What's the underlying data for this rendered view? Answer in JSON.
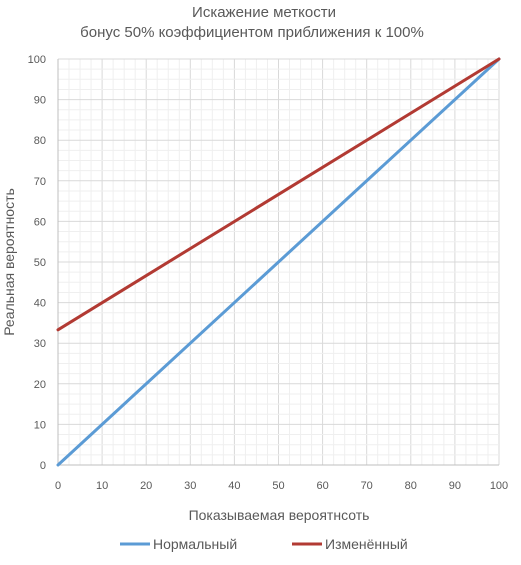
{
  "chart_data": {
    "type": "line",
    "title": "Искажение меткости",
    "subtitle": "бонус 50% коэффициентом приближения к 100%",
    "xlabel": "Показываемая вероятнсоть",
    "ylabel": "Реальная вероятность",
    "xlim": [
      0,
      100
    ],
    "ylim": [
      0,
      100
    ],
    "x_ticks": [
      "0",
      "10",
      "20",
      "30",
      "40",
      "50",
      "60",
      "70",
      "80",
      "90",
      "100"
    ],
    "y_ticks": [
      "0",
      "10",
      "20",
      "30",
      "40",
      "50",
      "60",
      "70",
      "80",
      "90",
      "100"
    ],
    "grid": true,
    "legend_position": "bottom",
    "series": [
      {
        "name": "Нормальный",
        "color": "#5b9bd5",
        "points": [
          [
            0,
            0
          ],
          [
            100,
            100
          ]
        ]
      },
      {
        "name": "Изменённый",
        "color": "#b23a33",
        "points": [
          [
            0,
            33.3
          ],
          [
            100,
            100
          ]
        ]
      }
    ]
  }
}
